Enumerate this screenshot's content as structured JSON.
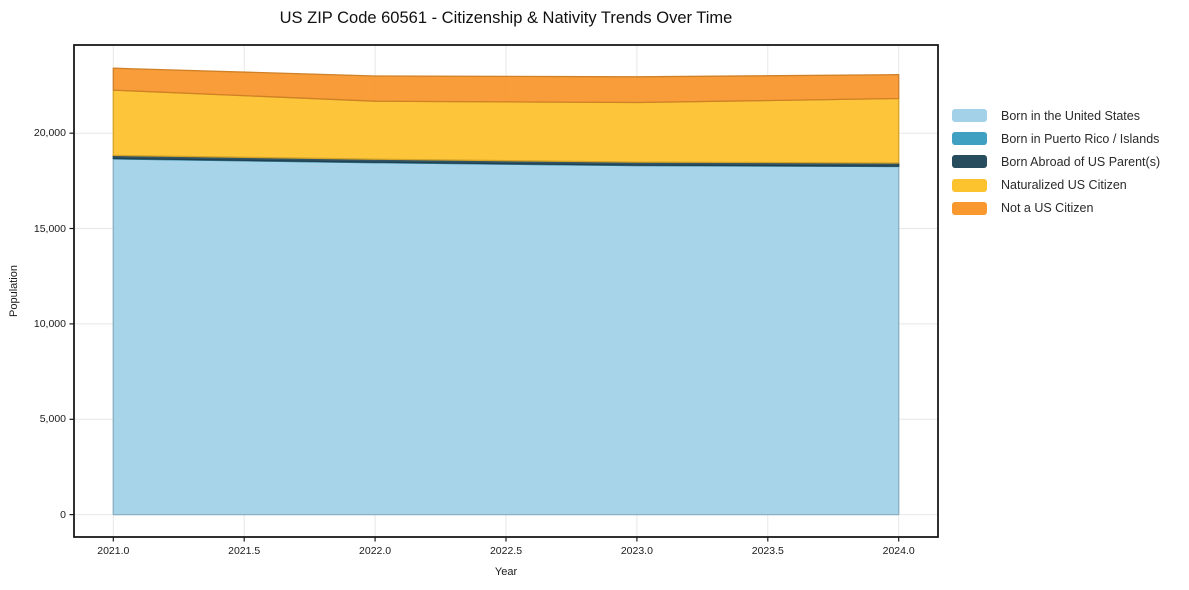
{
  "chart_data": {
    "type": "area",
    "stacked": true,
    "title": "US ZIP Code 60561 - Citizenship & Nativity Trends Over Time",
    "xlabel": "Year",
    "ylabel": "Population",
    "x": [
      2021,
      2022,
      2023,
      2024
    ],
    "series": [
      {
        "name": "Born in the United States",
        "color": "#a3d2e8",
        "values": [
          18650,
          18450,
          18300,
          18250
        ]
      },
      {
        "name": "Born in Puerto Rico / Islands",
        "color": "#3fa0c1",
        "values": [
          25,
          25,
          25,
          25
        ]
      },
      {
        "name": "Born Abroad of US Parent(s)",
        "color": "#274c5e",
        "values": [
          160,
          160,
          160,
          160
        ]
      },
      {
        "name": "Naturalized US Citizen",
        "color": "#fdc32f",
        "values": [
          3420,
          3040,
          3120,
          3380
        ]
      },
      {
        "name": "Not a US Citizen",
        "color": "#f8982e",
        "values": [
          1150,
          1320,
          1350,
          1250
        ]
      }
    ],
    "xlim": [
      2020.85,
      2024.15
    ],
    "ylim": [
      -1172,
      24622
    ],
    "xticks": [
      {
        "value": 2021.0,
        "label": "2021.0"
      },
      {
        "value": 2021.5,
        "label": "2021.5"
      },
      {
        "value": 2022.0,
        "label": "2022.0"
      },
      {
        "value": 2022.5,
        "label": "2022.5"
      },
      {
        "value": 2023.0,
        "label": "2023.0"
      },
      {
        "value": 2023.5,
        "label": "2023.5"
      },
      {
        "value": 2024.0,
        "label": "2024.0"
      }
    ],
    "yticks": [
      {
        "value": 0,
        "label": "0"
      },
      {
        "value": 5000,
        "label": "5,000"
      },
      {
        "value": 10000,
        "label": "10,000"
      },
      {
        "value": 15000,
        "label": "15,000"
      },
      {
        "value": 20000,
        "label": "20,000"
      }
    ],
    "grid": true,
    "grid_color": "#e7e7e7",
    "spine_color": "#1a1a1a",
    "legend_position": "right"
  }
}
